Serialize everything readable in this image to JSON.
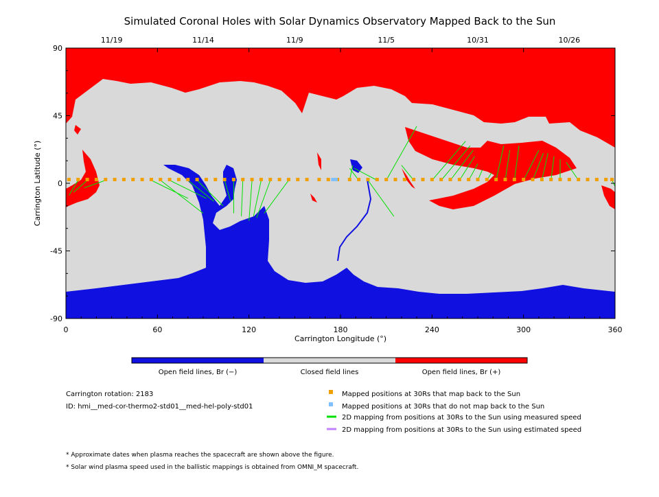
{
  "chart_data": {
    "type": "map",
    "title": "Simulated Coronal Holes with Solar Dynamics Observatory Mapped Back to the Sun",
    "xlabel": "Carrington Longitude (°)",
    "ylabel": "Carrington Latitude (°)",
    "xlim": [
      0,
      360
    ],
    "ylim": [
      -90,
      90
    ],
    "x_ticks": [
      "0",
      "60",
      "120",
      "180",
      "240",
      "300",
      "360"
    ],
    "y_ticks": [
      "90",
      "45",
      "0",
      "-45",
      "-90"
    ],
    "top_axis_dates": [
      {
        "label": "11/19",
        "longitude": 30
      },
      {
        "label": "11/14",
        "longitude": 90
      },
      {
        "label": "11/9",
        "longitude": 150
      },
      {
        "label": "11/5",
        "longitude": 210
      },
      {
        "label": "10/31",
        "longitude": 270
      },
      {
        "label": "10/26",
        "longitude": 330
      }
    ],
    "colorbar": [
      {
        "label": "Open field lines, Br (−)",
        "color": "#1010e0"
      },
      {
        "label": "Closed field lines",
        "color": "#d9d9d9"
      },
      {
        "label": "Open field lines, Br (+)",
        "color": "#ff0000"
      }
    ],
    "mapped_points_lon": [
      2,
      8,
      14,
      20,
      26,
      32,
      38,
      44,
      50,
      56,
      62,
      68,
      74,
      80,
      86,
      92,
      98,
      104,
      110,
      116,
      122,
      128,
      134,
      140,
      146,
      152,
      158,
      166,
      172,
      178,
      186,
      192,
      198,
      204,
      210,
      216,
      222,
      228,
      234,
      240,
      246,
      252,
      258,
      264,
      270,
      276,
      282,
      288,
      294,
      300,
      306,
      312,
      318,
      324,
      330,
      336,
      342,
      348,
      354,
      358
    ],
    "mapped_points_lat": 2.5,
    "unmapped_points_lon": [
      175,
      177
    ],
    "field_lines": [
      {
        "from": [
          8,
          2
        ],
        "to": [
          2,
          -8
        ]
      },
      {
        "from": [
          14,
          2
        ],
        "to": [
          5,
          -6
        ]
      },
      {
        "from": [
          26,
          2
        ],
        "to": [
          12,
          -3
        ]
      },
      {
        "from": [
          56,
          2
        ],
        "to": [
          80,
          -10
        ]
      },
      {
        "from": [
          62,
          2
        ],
        "to": [
          90,
          -20
        ]
      },
      {
        "from": [
          68,
          2
        ],
        "to": [
          92,
          -10
        ]
      },
      {
        "from": [
          80,
          2
        ],
        "to": [
          97,
          -12
        ]
      },
      {
        "from": [
          86,
          2
        ],
        "to": [
          103,
          -15
        ]
      },
      {
        "from": [
          104,
          2
        ],
        "to": [
          108,
          -12
        ]
      },
      {
        "from": [
          110,
          2
        ],
        "to": [
          110,
          -20
        ]
      },
      {
        "from": [
          116,
          2
        ],
        "to": [
          115,
          -22
        ]
      },
      {
        "from": [
          122,
          2
        ],
        "to": [
          120,
          -25
        ]
      },
      {
        "from": [
          128,
          2
        ],
        "to": [
          123,
          -22
        ]
      },
      {
        "from": [
          134,
          2
        ],
        "to": [
          125,
          -23
        ]
      },
      {
        "from": [
          146,
          2
        ],
        "to": [
          130,
          -20
        ]
      },
      {
        "from": [
          186,
          2
        ],
        "to": [
          188,
          12
        ]
      },
      {
        "from": [
          192,
          2
        ],
        "to": [
          186,
          10
        ]
      },
      {
        "from": [
          204,
          2
        ],
        "to": [
          189,
          10
        ]
      },
      {
        "from": [
          198,
          2
        ],
        "to": [
          215,
          -22
        ]
      },
      {
        "from": [
          210,
          2
        ],
        "to": [
          230,
          38
        ]
      },
      {
        "from": [
          228,
          2
        ],
        "to": [
          220,
          12
        ]
      },
      {
        "from": [
          240,
          2
        ],
        "to": [
          262,
          28
        ]
      },
      {
        "from": [
          246,
          2
        ],
        "to": [
          265,
          25
        ]
      },
      {
        "from": [
          252,
          2
        ],
        "to": [
          267,
          22
        ]
      },
      {
        "from": [
          258,
          2
        ],
        "to": [
          268,
          18
        ]
      },
      {
        "from": [
          264,
          2
        ],
        "to": [
          270,
          13
        ]
      },
      {
        "from": [
          270,
          2
        ],
        "to": [
          273,
          9
        ]
      },
      {
        "from": [
          276,
          2
        ],
        "to": [
          279,
          7
        ]
      },
      {
        "from": [
          282,
          2
        ],
        "to": [
          287,
          25
        ]
      },
      {
        "from": [
          288,
          2
        ],
        "to": [
          291,
          22
        ]
      },
      {
        "from": [
          294,
          2
        ],
        "to": [
          297,
          25
        ]
      },
      {
        "from": [
          300,
          2
        ],
        "to": [
          310,
          22
        ]
      },
      {
        "from": [
          306,
          2
        ],
        "to": [
          313,
          20
        ]
      },
      {
        "from": [
          312,
          2
        ],
        "to": [
          316,
          20
        ]
      },
      {
        "from": [
          318,
          2
        ],
        "to": [
          320,
          18
        ]
      },
      {
        "from": [
          324,
          2
        ],
        "to": [
          324,
          16
        ]
      },
      {
        "from": [
          336,
          2
        ],
        "to": [
          328,
          14
        ]
      },
      {
        "from": [
          358,
          2
        ],
        "to": [
          360,
          -2
        ]
      }
    ]
  },
  "info": {
    "rotation": "Carrington rotation: 2183",
    "id": "ID: hmi__med-cor-thermo2-std01__med-hel-poly-std01"
  },
  "legend": [
    {
      "label": "Mapped positions at 30Rs that map back to the Sun",
      "color": "#f0a000",
      "kind": "square"
    },
    {
      "label": "Mapped positions at 30Rs that do not map back to the Sun",
      "color": "#80c0ff",
      "kind": "square"
    },
    {
      "label": "2D mapping from positions at 30Rs to the Sun using measured speed",
      "color": "#00e000",
      "kind": "line"
    },
    {
      "label": "2D mapping from positions at 30Rs to the Sun using estimated speed",
      "color": "#c080ff",
      "kind": "line"
    }
  ],
  "notes": [
    "* Approximate dates when plasma reaches the spacecraft are shown above the figure.",
    "* Solar wind plasma speed used in the ballistic mappings is obtained from OMNI_M spacecraft."
  ]
}
